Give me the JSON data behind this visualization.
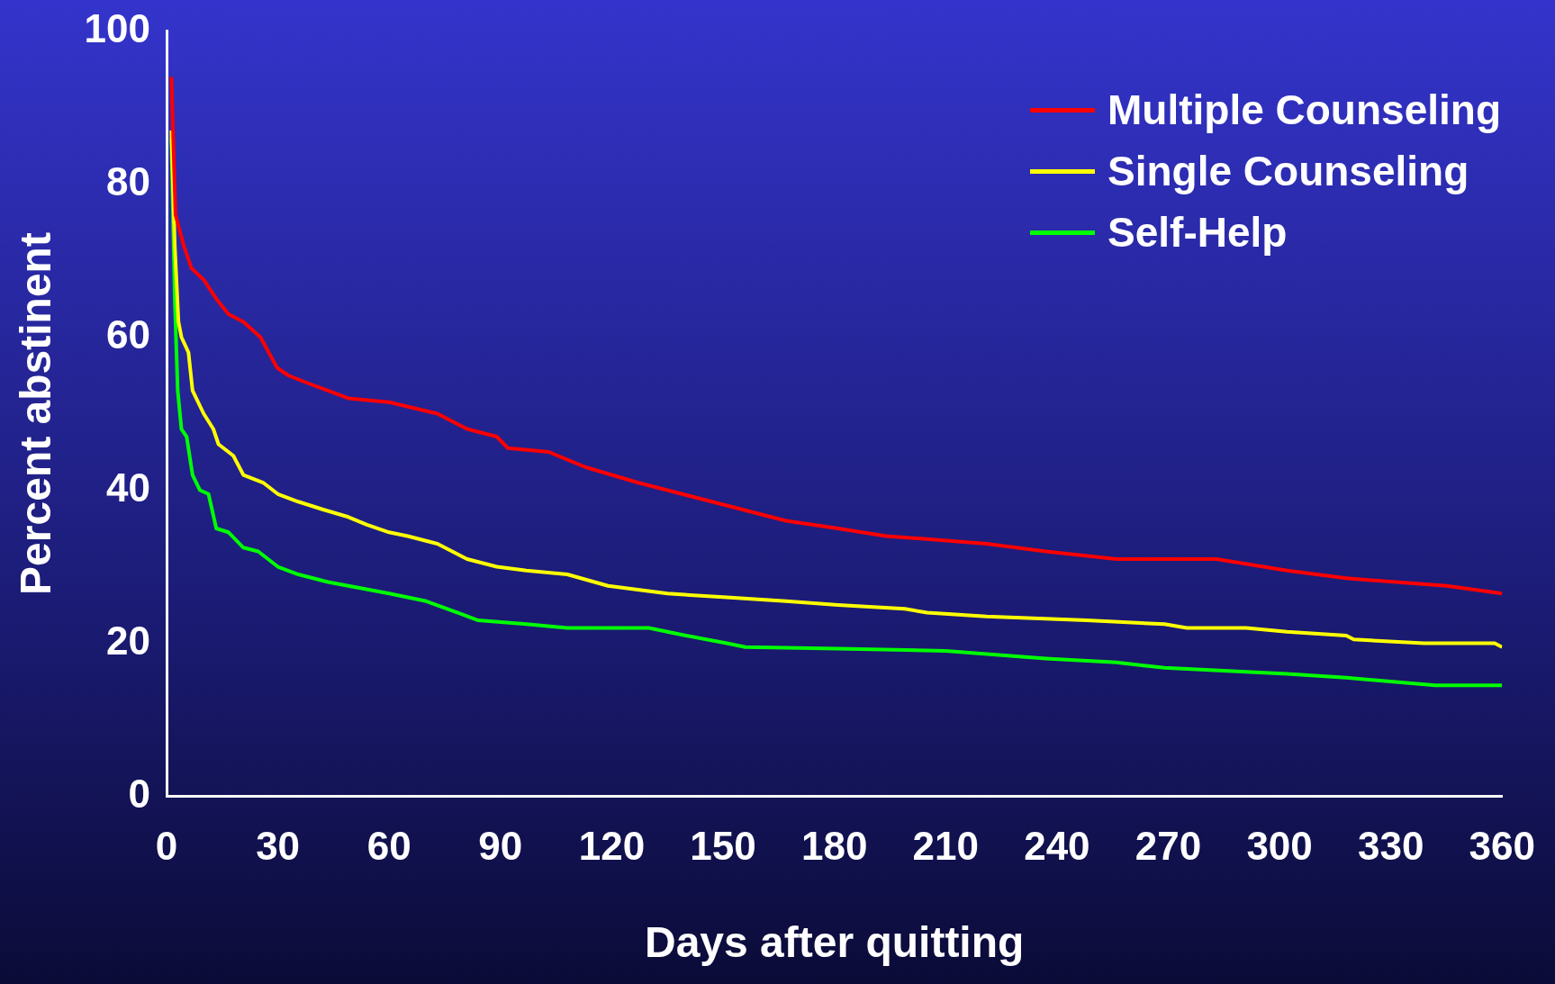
{
  "chart_data": {
    "type": "line",
    "xlabel": "Days after quitting",
    "ylabel": "Percent abstinent",
    "xlim": [
      0,
      360
    ],
    "xticks": [
      0,
      30,
      60,
      90,
      120,
      150,
      180,
      210,
      240,
      270,
      300,
      330,
      360
    ],
    "ylim": [
      0,
      100
    ],
    "yticks": [
      0,
      20,
      40,
      60,
      80,
      100
    ],
    "grid": false,
    "legend": "top right",
    "marker": "none",
    "line_style": "solid",
    "series": [
      {
        "name": "Multiple Counseling",
        "color": "#ff0000",
        "x": [
          1.3,
          2.4,
          4.6,
          6.7,
          10,
          13.4,
          16.7,
          20.7,
          25.3,
          29.8,
          32.8,
          38,
          43.5,
          49,
          60,
          73,
          81,
          89,
          92,
          103,
          113,
          127,
          135,
          151,
          167,
          181,
          194,
          208,
          221,
          237,
          256,
          283,
          302,
          318,
          345,
          360
        ],
        "values": [
          94,
          76,
          72,
          69,
          67.5,
          65,
          63,
          62,
          60,
          56,
          55,
          54,
          53,
          52,
          51.5,
          50,
          48,
          47,
          45.5,
          45,
          43,
          41,
          40,
          38,
          36,
          35,
          34,
          33.5,
          33,
          32,
          31,
          31,
          29.5,
          28.5,
          27.5,
          26.5
        ]
      },
      {
        "name": "Single Counseling",
        "color": "#ffff00",
        "x": [
          1.3,
          2.2,
          3.2,
          4,
          5.9,
          7,
          10,
          12.6,
          14,
          18,
          20.7,
          26,
          30,
          35.5,
          42,
          49,
          54,
          60,
          65,
          73,
          81,
          89,
          97,
          108,
          119,
          135,
          151,
          167,
          181,
          199,
          205,
          221,
          248,
          269,
          275,
          291,
          302,
          318,
          320,
          339,
          358,
          360
        ],
        "values": [
          87,
          72,
          62,
          60,
          58,
          53,
          50,
          48,
          46,
          44.5,
          42,
          41,
          39.5,
          38.5,
          37.5,
          36.5,
          35.5,
          34.5,
          34,
          33,
          31,
          30,
          29.5,
          29,
          27.5,
          26.5,
          26,
          25.5,
          25,
          24.5,
          24,
          23.5,
          23,
          22.5,
          22,
          22,
          21.5,
          21,
          20.5,
          20,
          20,
          19.5
        ]
      },
      {
        "name": "Self-Help",
        "color": "#00ff00",
        "x": [
          1.3,
          2.2,
          3,
          4,
          5.4,
          7,
          9,
          11.3,
          13.4,
          16.7,
          20.7,
          24.7,
          30,
          35.5,
          43.5,
          49,
          60,
          70,
          78.5,
          84,
          97,
          108,
          130,
          140,
          151,
          156,
          181,
          210,
          237,
          256,
          269,
          302,
          318,
          342,
          360
        ],
        "values": [
          86,
          65,
          53,
          48,
          47,
          42,
          40,
          39.5,
          35,
          34.5,
          32.5,
          32,
          30,
          29,
          28,
          27.5,
          26.5,
          25.5,
          24,
          23,
          22.5,
          22,
          22,
          21,
          20,
          19.5,
          19.3,
          19,
          18,
          17.5,
          16.8,
          16,
          15.5,
          14.5,
          14.5
        ]
      }
    ]
  }
}
